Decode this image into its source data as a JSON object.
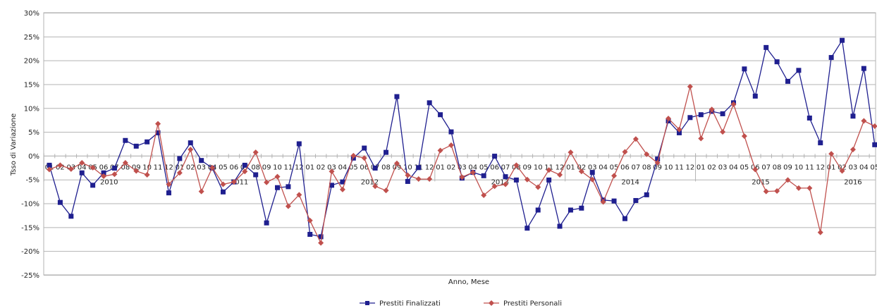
{
  "chart_data": {
    "type": "line",
    "xlabel": "Anno, Mese",
    "ylabel": "Tsso di Variazione",
    "ylim": [
      -25,
      30
    ],
    "y_step": 5,
    "y_unit": "%",
    "grid": "horizontal",
    "legend_position": "bottom-center",
    "years": [
      {
        "label": "2010",
        "start": 0
      },
      {
        "label": "2011",
        "start": 12
      },
      {
        "label": "2012",
        "start": 24
      },
      {
        "label": "2013",
        "start": 36
      },
      {
        "label": "2014",
        "start": 48
      },
      {
        "label": "2015",
        "start": 60
      },
      {
        "label": "2016",
        "start": 72
      }
    ],
    "month_labels": [
      "01",
      "02",
      "03",
      "04",
      "05",
      "06",
      "07",
      "08",
      "09",
      "10",
      "11",
      "12",
      "01",
      "02",
      "03",
      "04",
      "05",
      "06",
      "07",
      "08",
      "09",
      "10",
      "11",
      "12",
      "01",
      "02",
      "03",
      "04",
      "05",
      "06",
      "07",
      "08",
      "09",
      "10",
      "11",
      "12",
      "01",
      "02",
      "03",
      "04",
      "05",
      "06",
      "07",
      "08",
      "09",
      "10",
      "11",
      "12",
      "01",
      "02",
      "03",
      "04",
      "05",
      "06",
      "07",
      "08",
      "09",
      "10",
      "11",
      "12",
      "01",
      "02",
      "03",
      "04",
      "05",
      "06",
      "07",
      "08",
      "09",
      "10",
      "11",
      "12",
      "01",
      "02",
      "03",
      "04",
      "05"
    ],
    "series": [
      {
        "name": "Prestiti Finalizzati",
        "color": "#1f1f8f",
        "marker": "square",
        "values": [
          -2,
          -9.8,
          -12.7,
          -3.6,
          -6.2,
          -3.6,
          -2.6,
          3.2,
          2,
          2.9,
          4.8,
          -7.8,
          -0.6,
          2.7,
          -1,
          -2.6,
          -7.6,
          -5.5,
          -2,
          -4,
          -14.1,
          -6.7,
          -6.5,
          2.5,
          -16.5,
          -17,
          -6.2,
          -5.5,
          -0.5,
          1.6,
          -2.6,
          0.7,
          12.4,
          -5.4,
          -2.5,
          11.1,
          8.6,
          5,
          -4.7,
          -3.5,
          -4.2,
          -0.1,
          -4.4,
          -5.1,
          -15.2,
          -11.4,
          -5.1,
          -14.8,
          -11.4,
          -11,
          -3.5,
          -9.3,
          -9.5,
          -13.2,
          -9.4,
          -8.2,
          -0.7,
          7.3,
          4.8,
          8,
          8.6,
          9.3,
          8.8,
          11.1,
          18.2,
          12.5,
          22.7,
          19.7,
          15.6,
          17.9,
          7.9,
          2.7,
          20.6,
          24.2,
          8.3,
          18.3,
          2.3
        ]
      },
      {
        "name": "Prestiti Personali",
        "color": "#c0504d",
        "marker": "diamond",
        "values": [
          -2.9,
          -2,
          -2.8,
          -1.5,
          -2.5,
          -4.3,
          -3.9,
          -1.5,
          -3.2,
          -4,
          6.7,
          -6,
          -3.6,
          1.3,
          -7.5,
          -2.5,
          -6,
          -5.5,
          -3.3,
          0.7,
          -5.6,
          -4.4,
          -10.6,
          -8.2,
          -13.6,
          -18.3,
          -3.3,
          -7.1,
          0,
          -0.5,
          -6.4,
          -7.3,
          -1.6,
          -4.1,
          -4.9,
          -4.9,
          1.1,
          2.2,
          -4.5,
          -3.5,
          -8.3,
          -6.4,
          -6,
          -2,
          -5,
          -6.6,
          -3,
          -4,
          0.7,
          -3.3,
          -5,
          -9.7,
          -4.2,
          0.8,
          3.5,
          0.3,
          -1.5,
          7.8,
          5.5,
          14.5,
          3.6,
          9.7,
          5,
          10.8,
          4.1,
          -2.9,
          -7.5,
          -7.4,
          -5.1,
          -6.8,
          -6.8,
          -16.1,
          0.4,
          -3.2,
          1.3,
          7.3,
          6.2
        ]
      }
    ]
  }
}
